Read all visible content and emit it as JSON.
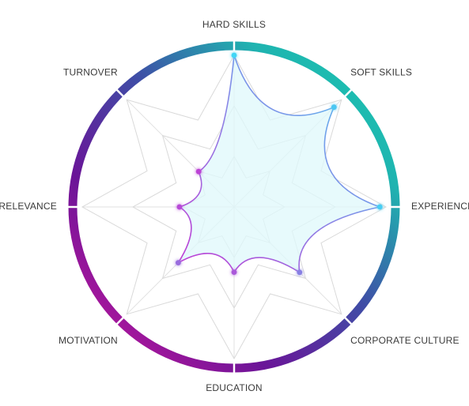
{
  "chart_data": {
    "type": "radar",
    "title": "",
    "axes": [
      "HARD SKILLS",
      "SOFT SKILLS",
      "EXPERIENCE",
      "CORPORATE CULTURE",
      "EDUCATION",
      "MOTIVATION",
      "RELEVANCE",
      "TURNOVER"
    ],
    "values": [
      1.0,
      0.93,
      0.96,
      0.61,
      0.43,
      0.52,
      0.36,
      0.33
    ],
    "range": [
      0,
      1
    ],
    "grid_levels": 3,
    "grid_shape": "eight-point star",
    "series": [
      {
        "values": [
          1.0,
          0.93,
          0.96,
          0.61,
          0.43,
          0.52,
          0.36,
          0.33
        ]
      }
    ],
    "point_colors": {
      "high": "#3fd6f5",
      "low": "#c23bd4"
    },
    "outer_ring_gradient": [
      "#19cbb0",
      "#3f5ea8",
      "#5a1f96",
      "#a0129a",
      "#cf1a9f"
    ],
    "area_fill": "#dff8fb",
    "legend": "none"
  }
}
